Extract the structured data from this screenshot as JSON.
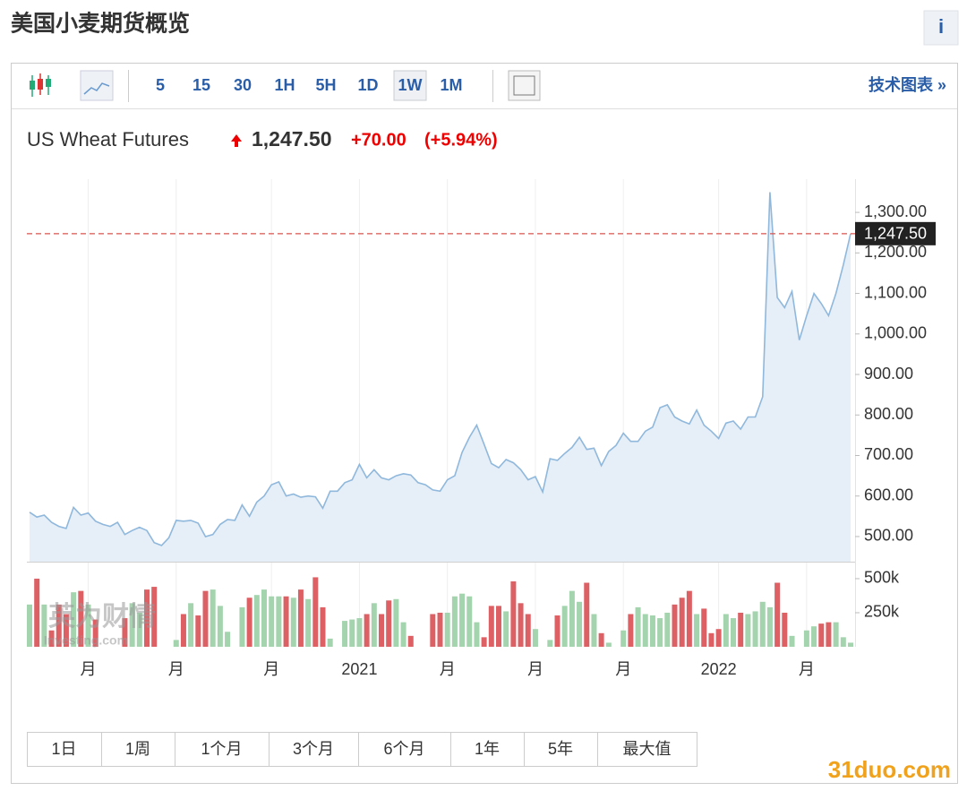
{
  "header": {
    "title": "美国小麦期货概览",
    "info": "i"
  },
  "toolbar": {
    "intervals": [
      "5",
      "15",
      "30",
      "1H",
      "5H",
      "1D",
      "1W",
      "1M"
    ],
    "selected": "1W",
    "link": "技术图表 »"
  },
  "chart_data": {
    "type": "line",
    "title": "US Wheat Futures",
    "last": {
      "value": 1247.5,
      "label": "1,247.50"
    },
    "change": "+70.00",
    "change_pct": "(+5.94%)",
    "categories": [
      null,
      null,
      null,
      null,
      null,
      null,
      null,
      null,
      "月",
      null,
      null,
      null,
      null,
      null,
      null,
      null,
      null,
      null,
      null,
      null,
      "月",
      null,
      null,
      null,
      null,
      null,
      null,
      null,
      null,
      null,
      null,
      null,
      null,
      "月",
      null,
      null,
      null,
      null,
      null,
      null,
      null,
      null,
      null,
      null,
      null,
      "2021",
      null,
      null,
      null,
      null,
      null,
      null,
      null,
      null,
      null,
      null,
      null,
      "月",
      null,
      null,
      null,
      null,
      null,
      null,
      null,
      null,
      null,
      null,
      null,
      "月",
      null,
      null,
      null,
      null,
      null,
      null,
      null,
      null,
      null,
      null,
      null,
      "月",
      null,
      null,
      null,
      null,
      null,
      null,
      null,
      null,
      null,
      null,
      null,
      null,
      "2022",
      null,
      null,
      null,
      null,
      null,
      null,
      null,
      null,
      null,
      null,
      null,
      "月",
      null,
      null,
      null,
      null,
      null,
      null
    ],
    "values": [
      560,
      548,
      553,
      535,
      525,
      520,
      572,
      553,
      558,
      538,
      530,
      525,
      535,
      505,
      515,
      523,
      515,
      485,
      478,
      497,
      540,
      538,
      540,
      533,
      500,
      505,
      530,
      542,
      540,
      578,
      550,
      585,
      600,
      628,
      635,
      600,
      605,
      597,
      600,
      598,
      570,
      612,
      612,
      633,
      640,
      678,
      645,
      665,
      645,
      640,
      650,
      655,
      652,
      633,
      628,
      615,
      612,
      640,
      650,
      708,
      745,
      775,
      728,
      680,
      670,
      690,
      682,
      665,
      640,
      648,
      610,
      692,
      688,
      705,
      720,
      745,
      715,
      718,
      675,
      710,
      725,
      755,
      735,
      735,
      760,
      770,
      818,
      825,
      795,
      785,
      778,
      812,
      775,
      760,
      742,
      780,
      785,
      765,
      795,
      795,
      845,
      1350,
      1090,
      1065,
      1105,
      985,
      1045,
      1100,
      1075,
      1045,
      1100,
      1170,
      1247.5
    ],
    "color": "#8fb8dc",
    "fill": "#e6eef8",
    "last_color": "#d9534f",
    "ylim": [
      438,
      1382
    ],
    "yticks": [
      {
        "value": 500,
        "label": "500.00"
      },
      {
        "value": 600,
        "label": "600.00"
      },
      {
        "value": 700,
        "label": "700.00"
      },
      {
        "value": 800,
        "label": "800.00"
      },
      {
        "value": 900,
        "label": "900.00"
      },
      {
        "value": 1000,
        "label": "1,000.00"
      },
      {
        "value": 1100,
        "label": "1,100.00"
      },
      {
        "value": 1200,
        "label": "1,200.00"
      },
      {
        "value": 1300,
        "label": "1,300.00"
      }
    ],
    "volume": {
      "values": [
        310000,
        500000,
        310000,
        120000,
        310000,
        240000,
        400000,
        410000,
        310000,
        200000,
        null,
        null,
        null,
        210000,
        320000,
        250000,
        420000,
        440000,
        null,
        null,
        50000,
        240000,
        320000,
        230000,
        410000,
        420000,
        300000,
        110000,
        null,
        290000,
        360000,
        380000,
        420000,
        370000,
        370000,
        370000,
        360000,
        420000,
        350000,
        510000,
        290000,
        60000,
        null,
        190000,
        200000,
        210000,
        240000,
        320000,
        240000,
        340000,
        350000,
        180000,
        80000,
        null,
        null,
        240000,
        250000,
        250000,
        370000,
        390000,
        370000,
        180000,
        70000,
        300000,
        300000,
        260000,
        480000,
        320000,
        240000,
        130000,
        null,
        50000,
        230000,
        300000,
        410000,
        330000,
        470000,
        240000,
        100000,
        30000,
        null,
        120000,
        240000,
        290000,
        240000,
        230000,
        210000,
        250000,
        310000,
        360000,
        410000,
        240000,
        280000,
        100000,
        130000,
        240000,
        210000,
        250000,
        240000,
        260000,
        330000,
        290000,
        470000,
        250000,
        80000,
        null,
        120000,
        150000,
        170000,
        180000,
        180000,
        70000,
        30000
      ],
      "up_color": "#a3d4ad",
      "down_color": "#dd6065",
      "ylim": [
        0,
        572000
      ],
      "yticks": [
        {
          "value": 250000,
          "label": "250k"
        },
        {
          "value": 500000,
          "label": "500k"
        }
      ]
    }
  },
  "ranges": [
    "1日",
    "1周",
    "1个月",
    "3个月",
    "6个月",
    "1年",
    "5年",
    "最大值"
  ],
  "watermarks": {
    "logo": "英为财情",
    "logo_sub": "Investing.com",
    "site": "31duo.com"
  }
}
